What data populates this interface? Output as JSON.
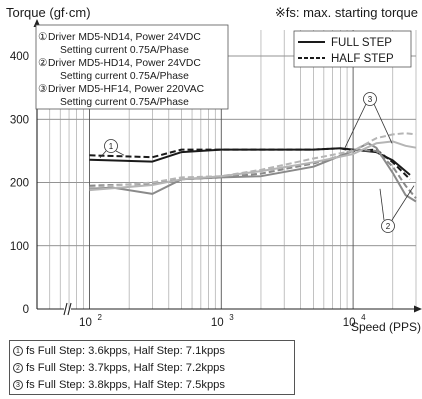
{
  "chart_data": {
    "type": "line",
    "ylabel": "Torque (gf·cm)",
    "xlabel": "Speed (PPS)",
    "note": "※fs: max. starting torque",
    "x_scale": "log",
    "xlim": [
      40,
      30000
    ],
    "ylim": [
      0,
      430
    ],
    "yticks": [
      "0",
      "100",
      "200",
      "300",
      "400"
    ],
    "xticks": [
      {
        "base": "10",
        "exp": "2",
        "value": 100
      },
      {
        "base": "10",
        "exp": "3",
        "value": 1000
      },
      {
        "base": "10",
        "exp": "4",
        "value": 10000
      }
    ],
    "grid": true,
    "legend": {
      "position": "top-right",
      "entries": [
        {
          "label": "FULL STEP",
          "style": "solid"
        },
        {
          "label": "HALF STEP",
          "style": "dashed"
        }
      ]
    },
    "drivers_box": [
      {
        "marker": "①",
        "line1": "Driver MD5-ND14, Power 24VDC",
        "line2": "Setting current 0.75A/Phase"
      },
      {
        "marker": "②",
        "line1": "Driver MD5-HD14, Power 24VDC",
        "line2": "Setting current 0.75A/Phase"
      },
      {
        "marker": "③",
        "line1": "Driver MD5-HF14, Power 220VAC",
        "line2": "Setting current 0.75A/Phase"
      }
    ],
    "annotations": [
      "①",
      "②",
      "③"
    ],
    "series": [
      {
        "driver": "①",
        "style": "full",
        "color": "#1a1a1a",
        "x": [
          100,
          300,
          500,
          1000,
          2000,
          5000,
          8000,
          10000,
          15000,
          20000,
          27000
        ],
        "y": [
          236,
          233,
          248,
          252,
          252,
          252,
          254,
          252,
          248,
          235,
          212
        ]
      },
      {
        "driver": "①",
        "style": "half",
        "color": "#1a1a1a",
        "x": [
          100,
          300,
          500,
          1000,
          2000,
          5000,
          8000,
          10000,
          15000,
          20000,
          27000
        ],
        "y": [
          243,
          240,
          252,
          252,
          252,
          252,
          254,
          250,
          252,
          232,
          205
        ]
      },
      {
        "driver": "②",
        "style": "full",
        "color": "#8a8a8a",
        "x": [
          100,
          150,
          300,
          500,
          1000,
          2000,
          5000,
          8000,
          10000,
          13000,
          15000,
          20000,
          25000,
          30000
        ],
        "y": [
          190,
          192,
          182,
          205,
          208,
          210,
          225,
          242,
          250,
          262,
          255,
          215,
          180,
          170
        ]
      },
      {
        "driver": "②",
        "style": "half",
        "color": "#8a8a8a",
        "x": [
          100,
          300,
          500,
          1000,
          2000,
          5000,
          8000,
          10000,
          15000,
          20000,
          25000,
          30000
        ],
        "y": [
          195,
          198,
          205,
          208,
          214,
          230,
          242,
          252,
          250,
          225,
          195,
          175
        ]
      },
      {
        "driver": "③",
        "style": "full",
        "color": "#b5b5b5",
        "x": [
          100,
          300,
          500,
          1000,
          2000,
          5000,
          10000,
          15000,
          20000,
          25000,
          30000
        ],
        "y": [
          188,
          196,
          205,
          210,
          218,
          232,
          245,
          262,
          265,
          258,
          255
        ]
      },
      {
        "driver": "③",
        "style": "half",
        "color": "#b5b5b5",
        "x": [
          100,
          300,
          500,
          1000,
          2000,
          5000,
          10000,
          15000,
          20000,
          25000,
          30000
        ],
        "y": [
          192,
          200,
          208,
          210,
          220,
          238,
          250,
          270,
          276,
          278,
          276
        ]
      }
    ],
    "fs_notes": [
      {
        "marker": "①",
        "text": "fs Full Step: 3.6kpps, Half Step: 7.1kpps"
      },
      {
        "marker": "②",
        "text": "fs Full Step: 3.7kpps, Half Step: 7.2kpps"
      },
      {
        "marker": "③",
        "text": "fs Full Step: 3.8kpps, Half Step: 7.5kpps"
      }
    ]
  }
}
